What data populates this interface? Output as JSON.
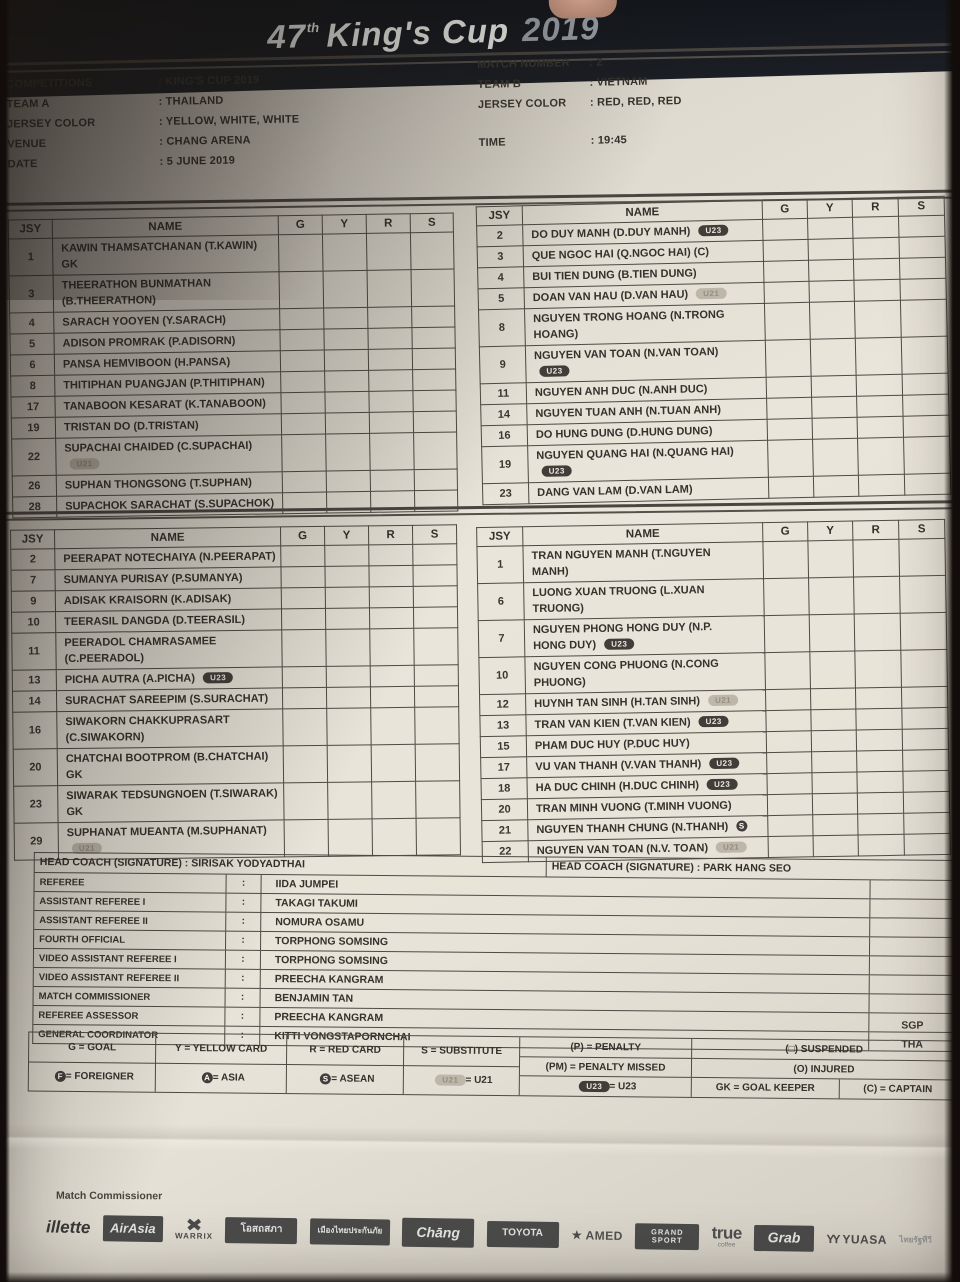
{
  "header": {
    "number": "47",
    "sup": "th",
    "title": "King's Cup",
    "year": "2019"
  },
  "match_info": {
    "left": [
      {
        "label": "COMPETITIONS",
        "value": ": KING'S CUP 2019"
      },
      {
        "label": "TEAM A",
        "value": ": THAILAND"
      },
      {
        "label": "JERSEY COLOR",
        "value": ": YELLOW, WHITE, WHITE"
      },
      {
        "label": "VENUE",
        "value": ": CHANG ARENA"
      },
      {
        "label": "DATE",
        "value": ": 5 JUNE 2019"
      }
    ],
    "right": [
      {
        "label": "MATCH NUMBER",
        "value": ": 2"
      },
      {
        "label": "TEAM B",
        "value": ": VIETNAM"
      },
      {
        "label": "JERSEY COLOR",
        "value": ": RED, RED, RED"
      },
      {
        "label": "TIME",
        "value": ": 19:45"
      }
    ]
  },
  "columns": [
    "JSY",
    "NAME",
    "G",
    "Y",
    "R",
    "S"
  ],
  "rosters": {
    "thailand_xi": [
      {
        "jsy": "1",
        "lines": [
          "KAWIN THAMSATCHANAN (T.KAWIN)",
          "GK"
        ]
      },
      {
        "jsy": "3",
        "lines": [
          "THEERATHON BUNMATHAN",
          "(B.THEERATHON)"
        ]
      },
      {
        "jsy": "4",
        "lines": [
          "SARACH YOOYEN (Y.SARACH)"
        ]
      },
      {
        "jsy": "5",
        "lines": [
          "ADISON PROMRAK (P.ADISORN)"
        ]
      },
      {
        "jsy": "6",
        "lines": [
          "PANSA HEMVIBOON (H.PANSA)"
        ]
      },
      {
        "jsy": "8",
        "lines": [
          "THITIPHAN PUANGJAN (P.THITIPHAN)"
        ]
      },
      {
        "jsy": "17",
        "lines": [
          "TANABOON KESARAT (K.TANABOON)"
        ]
      },
      {
        "jsy": "19",
        "lines": [
          "TRISTAN DO (D.TRISTAN)"
        ]
      },
      {
        "jsy": "22",
        "lines": [
          "SUPACHAI CHAIDED (C.SUPACHAI)",
          "[U21]"
        ]
      },
      {
        "jsy": "26",
        "lines": [
          "SUPHAN THONGSONG (T.SUPHAN)"
        ]
      },
      {
        "jsy": "28",
        "lines": [
          "SUPACHOK SARACHAT (S.SUPACHOK)"
        ]
      }
    ],
    "vietnam_xi": [
      {
        "jsy": "2",
        "lines": [
          "DO DUY MANH (D.DUY MANH) [U23]"
        ]
      },
      {
        "jsy": "3",
        "lines": [
          "QUE NGOC HAI (Q.NGOC HAI) (C)"
        ]
      },
      {
        "jsy": "4",
        "lines": [
          "BUI TIEN DUNG (B.TIEN DUNG)"
        ]
      },
      {
        "jsy": "5",
        "lines": [
          "DOAN VAN HAU (D.VAN HAU) [U21]"
        ]
      },
      {
        "jsy": "8",
        "lines": [
          "NGUYEN TRONG HOANG (N.TRONG",
          "HOANG)"
        ]
      },
      {
        "jsy": "9",
        "lines": [
          "NGUYEN VAN TOAN (N.VAN TOAN)",
          "[U23]"
        ]
      },
      {
        "jsy": "11",
        "lines": [
          "NGUYEN ANH DUC (N.ANH DUC)"
        ]
      },
      {
        "jsy": "14",
        "lines": [
          "NGUYEN TUAN ANH (N.TUAN ANH)"
        ]
      },
      {
        "jsy": "16",
        "lines": [
          "DO HUNG DUNG (D.HUNG DUNG)"
        ]
      },
      {
        "jsy": "19",
        "lines": [
          "NGUYEN QUANG HAI (N.QUANG HAI)",
          "[U23]"
        ]
      },
      {
        "jsy": "23",
        "lines": [
          "DANG VAN LAM (D.VAN LAM)"
        ]
      }
    ],
    "thailand_subs": [
      {
        "jsy": "2",
        "lines": [
          "PEERAPAT NOTECHAIYA (N.PEERAPAT)"
        ]
      },
      {
        "jsy": "7",
        "lines": [
          "SUMANYA PURISAY (P.SUMANYA)"
        ]
      },
      {
        "jsy": "9",
        "lines": [
          "ADISAK KRAISORN (K.ADISAK)"
        ]
      },
      {
        "jsy": "10",
        "lines": [
          "TEERASIL DANGDA (D.TEERASIL)"
        ]
      },
      {
        "jsy": "11",
        "lines": [
          "PEERADOL CHAMRASAMEE",
          "(C.PEERADOL)"
        ]
      },
      {
        "jsy": "13",
        "lines": [
          "PICHA AUTRA (A.PICHA) [U23]"
        ]
      },
      {
        "jsy": "14",
        "lines": [
          "SURACHAT SAREEPIM (S.SURACHAT)"
        ]
      },
      {
        "jsy": "16",
        "lines": [
          "SIWAKORN CHAKKUPRASART",
          "(C.SIWAKORN)"
        ]
      },
      {
        "jsy": "20",
        "lines": [
          "CHATCHAI BOOTPROM (B.CHATCHAI)",
          "GK"
        ]
      },
      {
        "jsy": "23",
        "lines": [
          "SIWARAK TEDSUNGNOEN (T.SIWARAK)",
          "GK"
        ]
      },
      {
        "jsy": "29",
        "lines": [
          "SUPHANAT MUEANTA (M.SUPHANAT)",
          "[U21]"
        ]
      }
    ],
    "vietnam_subs": [
      {
        "jsy": "1",
        "lines": [
          "TRAN NGUYEN MANH (T.NGUYEN",
          "MANH)"
        ]
      },
      {
        "jsy": "6",
        "lines": [
          "LUONG XUAN TRUONG (L.XUAN",
          "TRUONG)"
        ]
      },
      {
        "jsy": "7",
        "lines": [
          "NGUYEN PHONG HONG DUY (N.P.",
          "HONG DUY) [U23]"
        ]
      },
      {
        "jsy": "10",
        "lines": [
          "NGUYEN CONG PHUONG (N.CONG",
          "PHUONG)"
        ]
      },
      {
        "jsy": "12",
        "lines": [
          "HUYNH TAN SINH (H.TAN SINH) [U21]"
        ]
      },
      {
        "jsy": "13",
        "lines": [
          "TRAN VAN KIEN (T.VAN KIEN) [U23]"
        ]
      },
      {
        "jsy": "15",
        "lines": [
          "PHAM DUC HUY (P.DUC HUY)"
        ]
      },
      {
        "jsy": "17",
        "lines": [
          "VU VAN THANH (V.VAN THANH) [U23]"
        ]
      },
      {
        "jsy": "18",
        "lines": [
          "HA DUC CHINH (H.DUC CHINH) [U23]"
        ]
      },
      {
        "jsy": "20",
        "lines": [
          "TRAN MINH VUONG (T.MINH VUONG)"
        ]
      },
      {
        "jsy": "21",
        "lines": [
          "NGUYEN THANH CHUNG (N.THANH) [S]"
        ]
      },
      {
        "jsy": "22",
        "lines": [
          "NGUYEN VAN TOAN (N.V. TOAN) [U21]"
        ]
      }
    ]
  },
  "officials": {
    "head_coach_a": "HEAD COACH (SIGNATURE) : SIRISAK YODYADTHAI",
    "head_coach_b": "HEAD COACH (SIGNATURE) : PARK HANG SEO",
    "rows": [
      {
        "label": "REFEREE",
        "value": "IIDA JUMPEI",
        "nat": ""
      },
      {
        "label": "ASSISTANT REFEREE I",
        "value": "TAKAGI TAKUMI",
        "nat": ""
      },
      {
        "label": "ASSISTANT REFEREE II",
        "value": "NOMURA OSAMU",
        "nat": ""
      },
      {
        "label": "FOURTH OFFICIAL",
        "value": "TORPHONG SOMSING",
        "nat": ""
      },
      {
        "label": "VIDEO ASSISTANT REFEREE I",
        "value": "TORPHONG SOMSING",
        "nat": ""
      },
      {
        "label": "VIDEO ASSISTANT REFEREE II",
        "value": "PREECHA KANGRAM",
        "nat": ""
      },
      {
        "label": "MATCH COMMISSIONER",
        "value": "BENJAMIN TAN",
        "nat": ""
      },
      {
        "label": "REFEREE ASSESSOR",
        "value": "PREECHA KANGRAM",
        "nat": "SGP"
      },
      {
        "label": "GENERAL COORDINATOR",
        "value": "KITTI VONGSTAPORNCHAI",
        "nat": "THA"
      }
    ]
  },
  "legend": {
    "col1": [
      "G = GOAL",
      "[F] = FOREIGNER"
    ],
    "col2": [
      "Y = YELLOW CARD",
      "[A] = ASIA"
    ],
    "col3": [
      "R = RED CARD",
      "[S] = ASEAN"
    ],
    "col4": [
      "S = SUBSTITUTE",
      "[U21] = U21"
    ],
    "col5": [
      "(P) = PENALTY",
      "(PM) = PENALTY MISSED",
      "[U23] = U23"
    ],
    "col6_top": [
      "(□) SUSPENDED",
      "(O) INJURED"
    ],
    "col6_bottom": [
      "GK = GOAL KEEPER",
      "(C) = CAPTAIN"
    ]
  },
  "footer": {
    "note": "Match Commissioner",
    "sponsors": [
      {
        "id": "gillette",
        "type": "script-plain",
        "text": "illette"
      },
      {
        "id": "airasia",
        "type": "boxscript",
        "text": "AirAsia"
      },
      {
        "id": "warrix",
        "type": "xmark",
        "text": "WARRIX"
      },
      {
        "id": "osotspa",
        "type": "box",
        "text": "โอสถสภา"
      },
      {
        "id": "muang-thai-insurance",
        "type": "box",
        "text": "เมืองไทยประกันภัย"
      },
      {
        "id": "chang",
        "type": "boxscript",
        "text": "Chāng"
      },
      {
        "id": "toyota",
        "type": "box",
        "text": "TOYOTA"
      },
      {
        "id": "amed",
        "type": "star",
        "text": "AMED"
      },
      {
        "id": "grand-sport",
        "type": "box2",
        "lines": [
          "GRAND",
          "SPORT"
        ]
      },
      {
        "id": "true",
        "type": "true",
        "text": "true",
        "sub": "coffee"
      },
      {
        "id": "grab",
        "type": "boxscript",
        "text": "Grab"
      },
      {
        "id": "yuasa",
        "type": "yuasa",
        "text": "YUASA"
      },
      {
        "id": "thairath-tv",
        "type": "faint",
        "text": "ไทยรัฐทีวี"
      }
    ]
  }
}
